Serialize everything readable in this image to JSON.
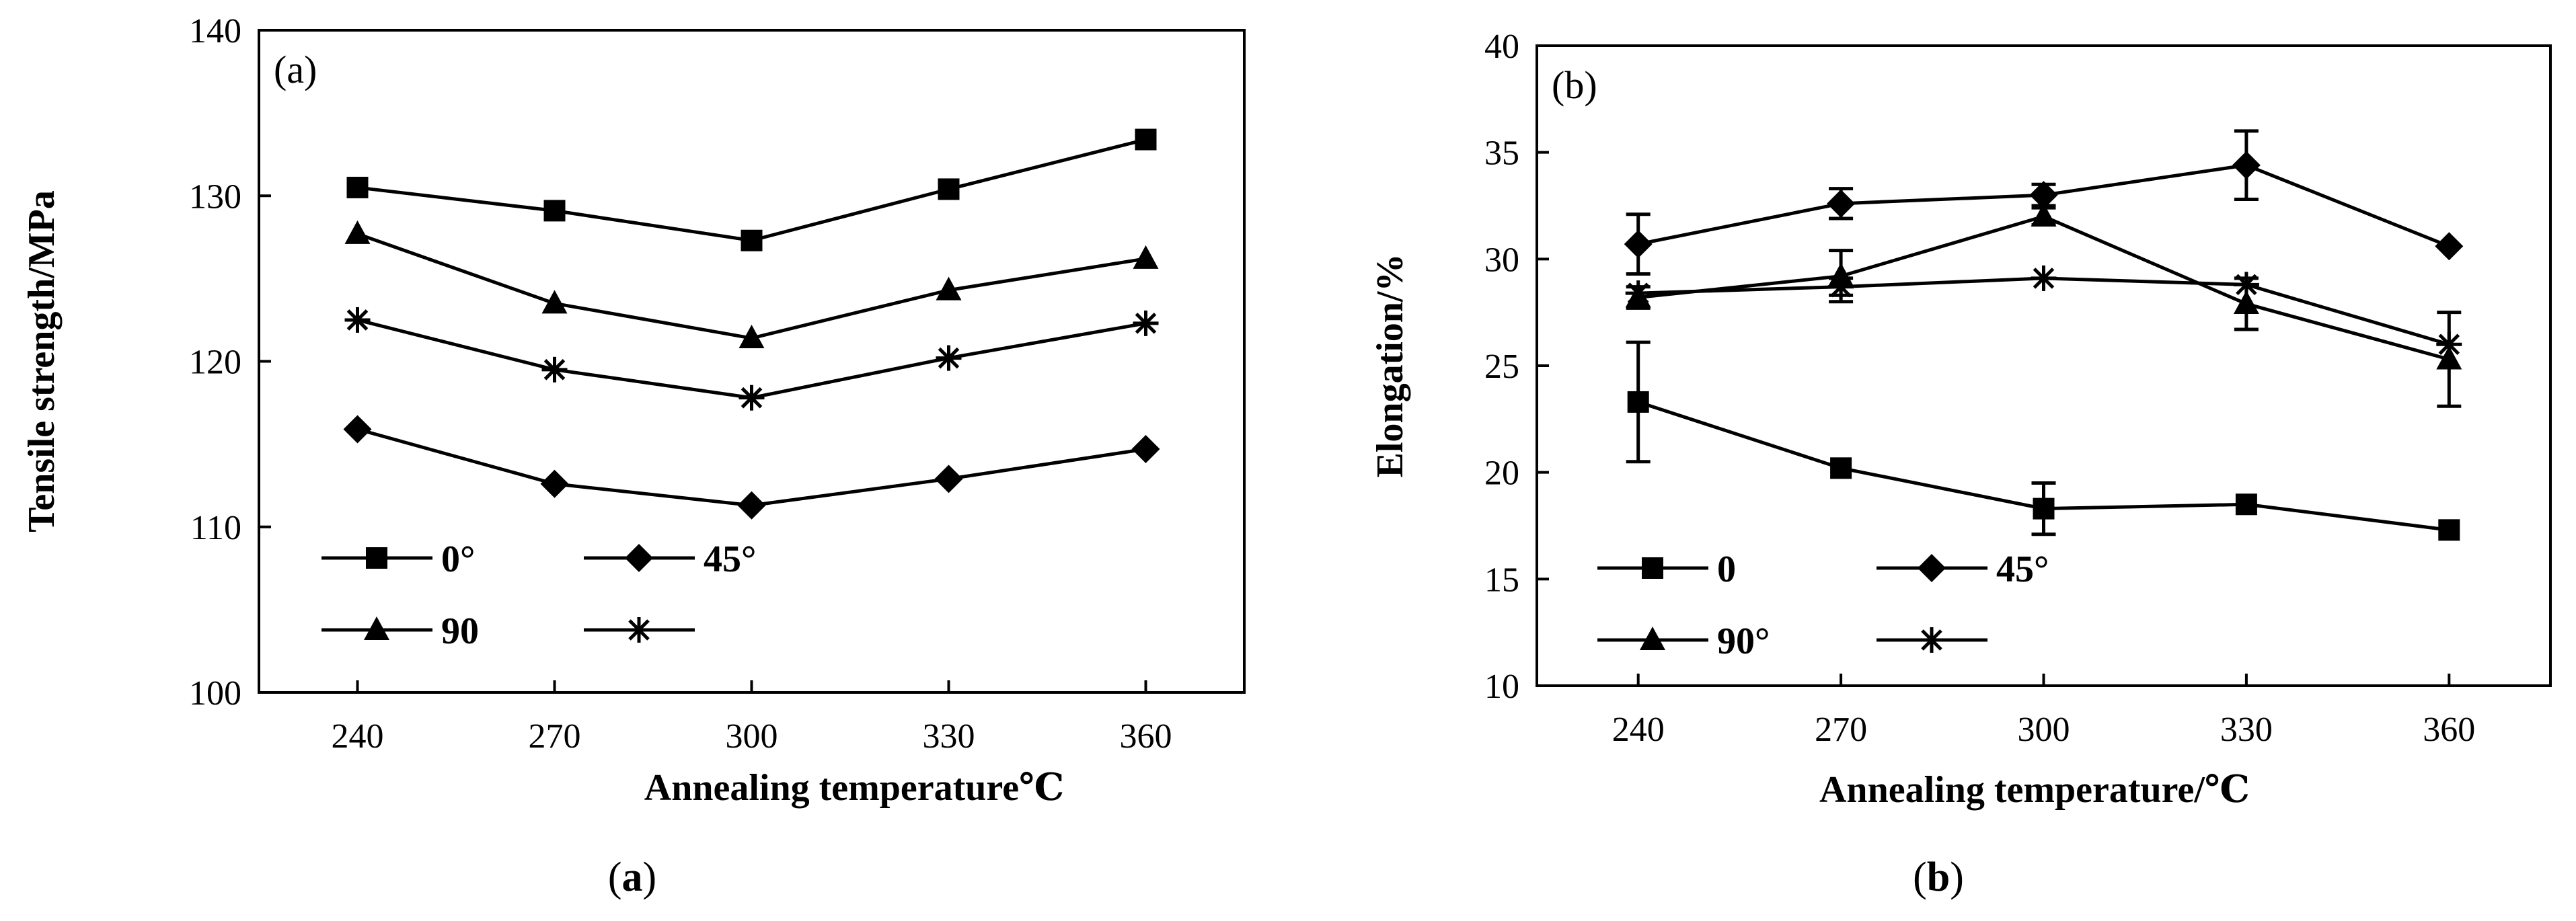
{
  "chart_data": [
    {
      "type": "line",
      "panel_label": "(a)",
      "caption": {
        "open": "(",
        "letter": "a",
        "close": ")"
      },
      "xlabel": "Annealing temperature℃",
      "ylabel": "Tensile strength/MPa",
      "x": [
        240,
        270,
        300,
        330,
        360
      ],
      "xlim": [
        225,
        375
      ],
      "ylim": [
        100,
        140
      ],
      "yticks": [
        100,
        110,
        120,
        130,
        140
      ],
      "grid": false,
      "legend_position": "bottom-left",
      "series": [
        {
          "name": "0°",
          "marker": "square",
          "values": [
            130.5,
            129.1,
            127.3,
            130.4,
            133.4
          ]
        },
        {
          "name": "45°",
          "marker": "diamond",
          "values": [
            115.9,
            112.6,
            111.3,
            112.9,
            114.7
          ]
        },
        {
          "name": "90",
          "marker": "triangle",
          "values": [
            127.7,
            123.5,
            121.4,
            124.3,
            126.2
          ]
        },
        {
          "name": "",
          "marker": "asterisk",
          "values": [
            122.5,
            119.5,
            117.8,
            120.2,
            122.3
          ]
        }
      ]
    },
    {
      "type": "line",
      "panel_label": "(b)",
      "caption": {
        "open": "(",
        "letter": "b",
        "close": ")"
      },
      "xlabel": "Annealing temperature/℃",
      "ylabel": "Elongation/%",
      "x": [
        240,
        270,
        300,
        330,
        360
      ],
      "xlim": [
        225,
        375
      ],
      "ylim": [
        10,
        40
      ],
      "yticks": [
        10,
        15,
        20,
        25,
        30,
        35,
        40
      ],
      "grid": false,
      "legend_position": "bottom-left",
      "series": [
        {
          "name": "0",
          "marker": "square",
          "values": [
            23.3,
            20.2,
            18.3,
            18.5,
            17.3
          ],
          "errors": [
            2.8,
            0,
            1.2,
            0,
            0
          ]
        },
        {
          "name": "45°",
          "marker": "diamond",
          "values": [
            30.7,
            32.6,
            33.0,
            34.4,
            30.6
          ],
          "errors": [
            1.4,
            0.7,
            0.5,
            1.6,
            0
          ]
        },
        {
          "name": "90°",
          "marker": "triangle",
          "values": [
            28.2,
            29.2,
            32.0,
            27.9,
            25.3
          ],
          "errors": [
            0.5,
            1.2,
            0.4,
            1.2,
            2.2
          ]
        },
        {
          "name": "",
          "marker": "asterisk",
          "values": [
            28.4,
            28.7,
            29.1,
            28.8,
            26.0
          ],
          "errors": [
            0,
            0.4,
            0,
            0,
            0
          ]
        }
      ]
    }
  ]
}
